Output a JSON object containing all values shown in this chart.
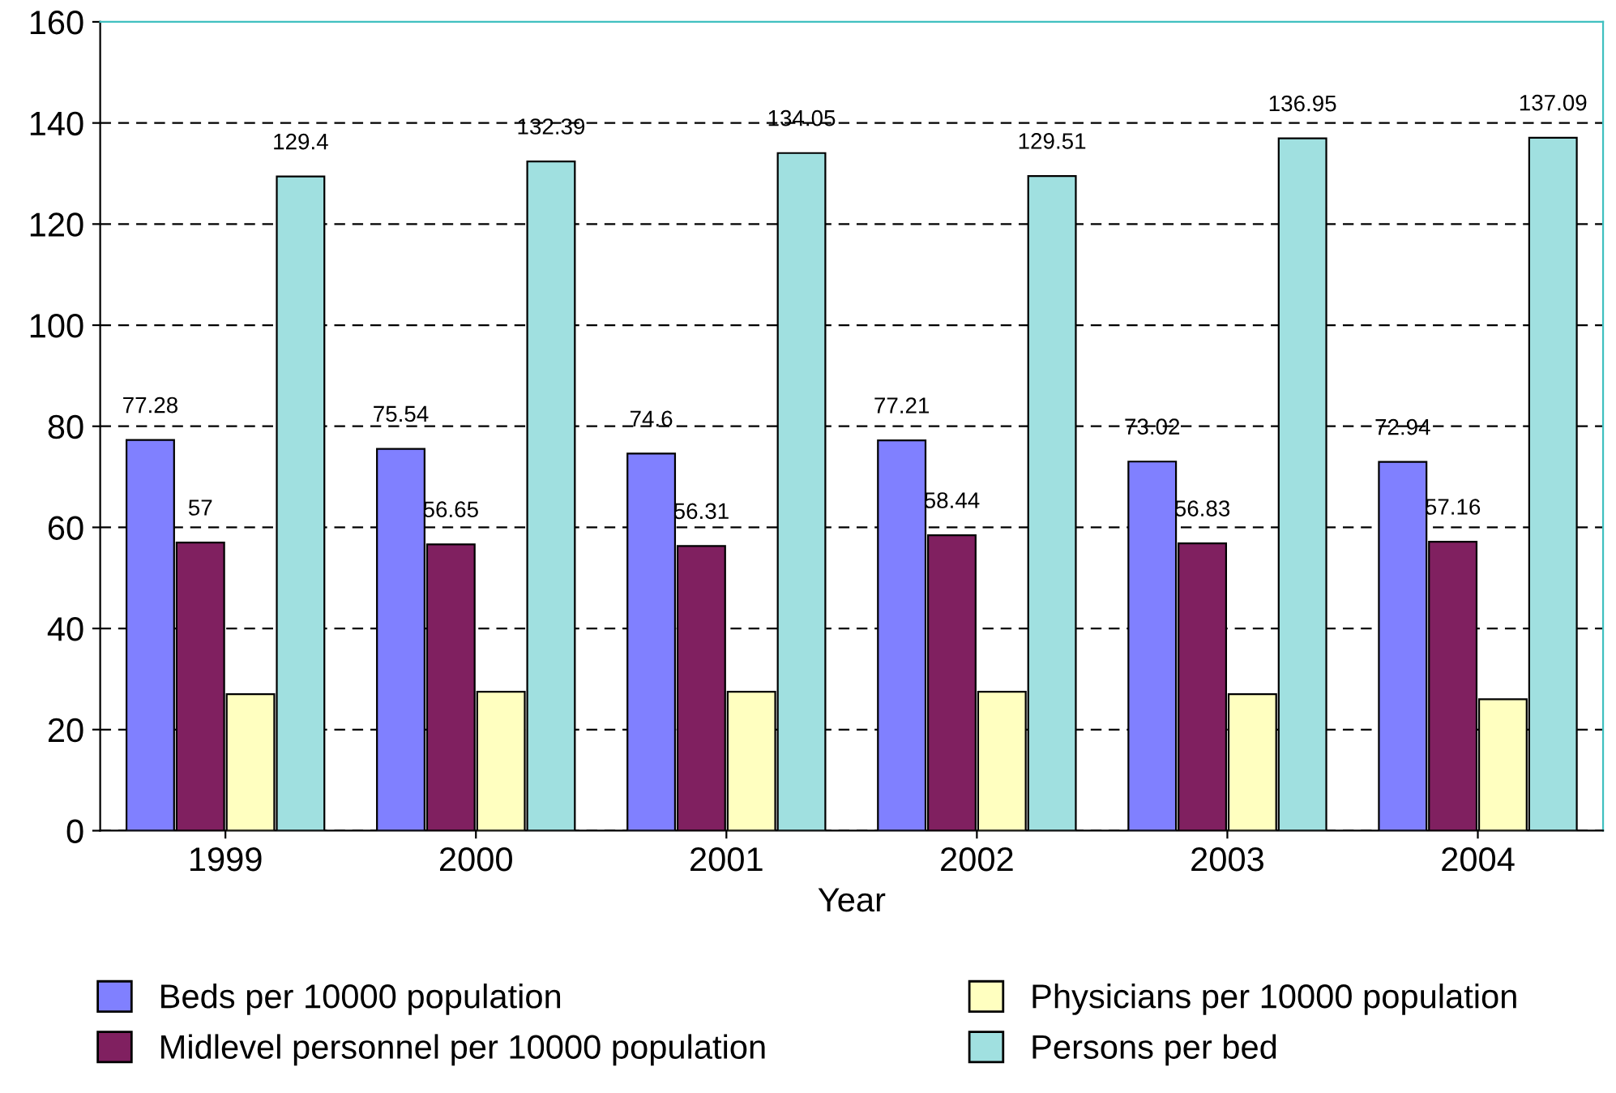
{
  "chart_data": {
    "type": "bar",
    "xlabel": "Year",
    "categories": [
      "1999",
      "2000",
      "2001",
      "2002",
      "2003",
      "2004"
    ],
    "series": [
      {
        "name": "Beds per 10000 population",
        "color": "#8080ff",
        "values": [
          77.28,
          75.54,
          74.6,
          77.21,
          73.02,
          72.94
        ],
        "value_labels": [
          "77.28",
          "75.54",
          "74.6",
          "77.21",
          "73.02",
          "72.94"
        ]
      },
      {
        "name": "Midlevel personnel per 10000 population",
        "color": "#802060",
        "values": [
          57,
          56.65,
          56.31,
          58.44,
          56.83,
          57.16
        ],
        "value_labels": [
          "57",
          "56.65",
          "56.31",
          "58.44",
          "56.83",
          "57.16"
        ]
      },
      {
        "name": "Physicians per 10000 population",
        "color": "#ffffc0",
        "values": [
          27,
          27.5,
          27.5,
          27.5,
          27,
          26
        ]
      },
      {
        "name": "Persons per bed",
        "color": "#a0e0e0",
        "values": [
          129.4,
          132.39,
          134.05,
          129.51,
          136.95,
          137.09
        ],
        "value_labels": [
          "129.4",
          "132.39",
          "134.05",
          "129.51",
          "136.95",
          "137.09"
        ]
      }
    ],
    "ylim": [
      0,
      160
    ],
    "yticks": [
      0,
      20,
      40,
      60,
      80,
      100,
      120,
      140,
      160
    ],
    "grid": "y",
    "legend": "bottom"
  }
}
